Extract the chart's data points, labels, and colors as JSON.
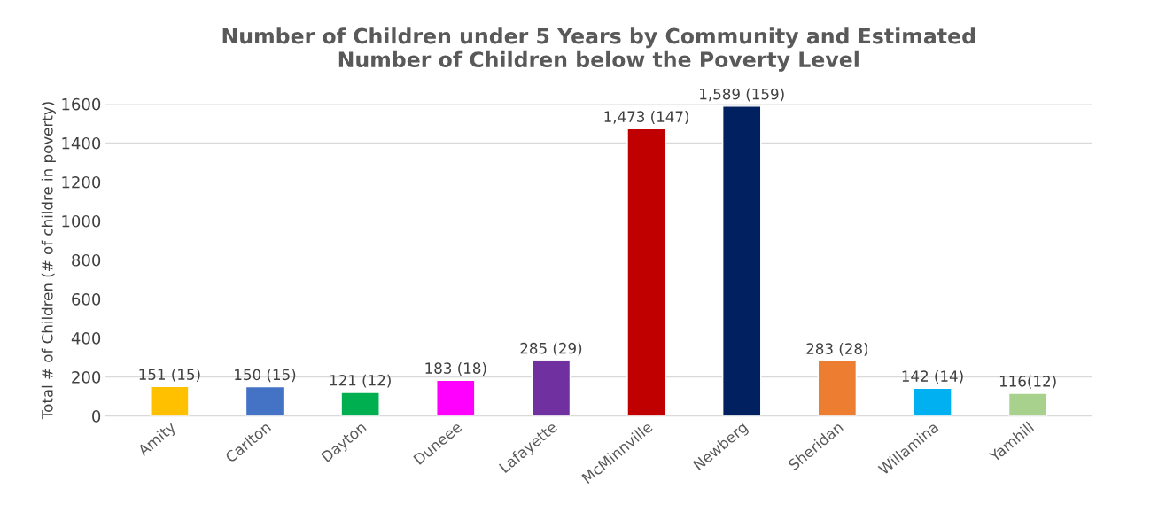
{
  "chart_data": {
    "type": "bar",
    "title": "Number of Children under 5 Years by Community and Estimated\nNumber of Children below the Poverty Level",
    "ylabel": "Total # of Children (# of childre in poverty)",
    "categories": [
      "Amity",
      "Carlton",
      "Dayton",
      "Duneee",
      "Lafayette",
      "McMinnville",
      "Newberg",
      "Sheridan",
      "Willamina",
      "Yamhill"
    ],
    "values": [
      151,
      150,
      121,
      183,
      285,
      1473,
      1589,
      283,
      142,
      116
    ],
    "colors": [
      "#ffc000",
      "#4472c4",
      "#00b050",
      "#ff00ff",
      "#7030a0",
      "#c00000",
      "#002060",
      "#ed7d31",
      "#00b0f0",
      "#a9d18e"
    ],
    "value_labels": [
      "151 (15)",
      "150 (15)",
      "121 (12)",
      "183 (18)",
      "285 (29)",
      "1,473 (147)",
      "1,589 (159)",
      "283 (28)",
      "142 (14)",
      "116(12)"
    ],
    "ylim": [
      0,
      1600
    ],
    "yticks": [
      0,
      200,
      400,
      600,
      800,
      1000,
      1200,
      1400,
      1600
    ],
    "grid": "y",
    "legend": false
  }
}
